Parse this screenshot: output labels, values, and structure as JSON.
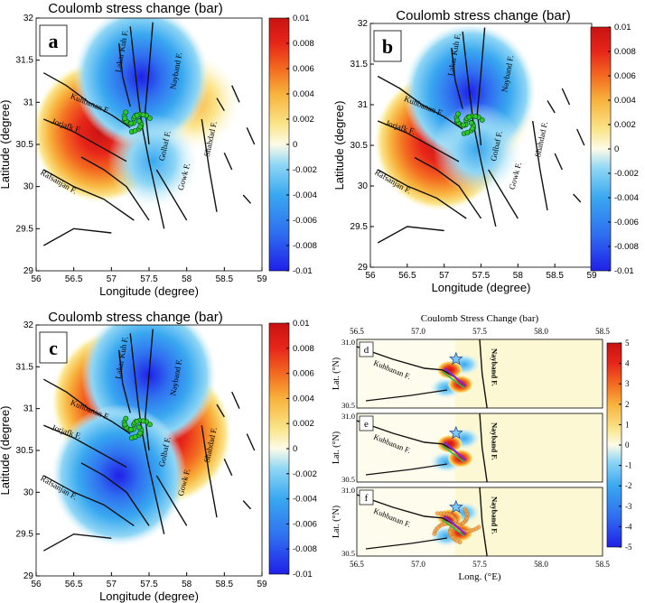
{
  "colors": {
    "scale": [
      "#2020e8",
      "#2f6ff0",
      "#39a8f0",
      "#8fd6f5",
      "#e4f7fb",
      "#fdf9d6",
      "#fbe48a",
      "#f8b23c",
      "#f36a20",
      "#e7261a",
      "#c81212"
    ],
    "fault": "#111111",
    "epicenter_fill": "#2ec82e",
    "epicenter_stroke": "#0a4a0a",
    "star": "#7fc8ff"
  },
  "chart_data": [
    {
      "id": "a",
      "type": "heatmap",
      "title": "Coulomb stress change (bar)",
      "panel_label": "a",
      "xlabel": "Longitude (degree)",
      "ylabel": "Latitude (degree)",
      "xlim": [
        56,
        59
      ],
      "ylim": [
        29,
        32
      ],
      "x_ticks": [
        "56",
        "56.5",
        "57",
        "57.5",
        "58",
        "58.5",
        "59"
      ],
      "y_ticks": [
        "29",
        "29.5",
        "30",
        "30.5",
        "31",
        "31.5",
        "32"
      ],
      "colorbar": {
        "range": [
          -0.01,
          0.01
        ],
        "ticks": [
          "0.01",
          "0.008",
          "0.006",
          "0.004",
          "0.002",
          "0",
          "-0.002",
          "-0.004",
          "-0.006",
          "-0.008",
          "-0.01"
        ]
      },
      "fault_labels": [
        "Lakar Kuh F.",
        "Kuhbanan F.",
        "Nayband F.",
        "Jorjafk F.",
        "Rafsanjan F.",
        "Golbaf F.",
        "Gowk F.",
        "Shahdad F."
      ],
      "lobes": [
        {
          "sign": "positive",
          "lon": 56.85,
          "lat": 30.65,
          "amplitude": 0.01
        },
        {
          "sign": "positive",
          "lon": 58.1,
          "lat": 31.0,
          "amplitude": 0.004
        },
        {
          "sign": "negative",
          "lon": 57.4,
          "lat": 31.3,
          "amplitude": -0.009
        },
        {
          "sign": "negative",
          "lon": 57.55,
          "lat": 30.3,
          "amplitude": -0.005
        }
      ]
    },
    {
      "id": "b",
      "type": "heatmap",
      "title": "Coulomb stress change (bar)",
      "panel_label": "b",
      "xlabel": "Longitude (degree)",
      "ylabel": "Latitude (degree)",
      "xlim": [
        56,
        59
      ],
      "ylim": [
        29,
        32
      ],
      "x_ticks": [
        "56",
        "56.5",
        "57",
        "57.5",
        "58",
        "58.5",
        "59"
      ],
      "y_ticks": [
        "29",
        "29.5",
        "30",
        "30.5",
        "31",
        "31.5",
        "32"
      ],
      "colorbar": {
        "range": [
          -0.01,
          0.01
        ],
        "ticks": [
          "0.01",
          "0.008",
          "0.006",
          "0.004",
          "0.002",
          "0",
          "-0.002",
          "-0.004",
          "-0.006",
          "-0.008",
          "-0.01"
        ]
      },
      "fault_labels": [
        "Lakar Kuh F.",
        "Kuhbanan F.",
        "Nayband F.",
        "Jorjafk F.",
        "Rafsanjan F.",
        "Golbaf F.",
        "Gowk F.",
        "Shahdad F."
      ],
      "lobes": [
        {
          "sign": "positive",
          "lon": 56.95,
          "lat": 30.55,
          "amplitude": 0.009
        },
        {
          "sign": "positive",
          "lon": 57.6,
          "lat": 30.85,
          "amplitude": 0.003
        },
        {
          "sign": "negative",
          "lon": 57.35,
          "lat": 31.15,
          "amplitude": -0.008
        },
        {
          "sign": "negative",
          "lon": 57.45,
          "lat": 30.45,
          "amplitude": -0.003
        }
      ]
    },
    {
      "id": "c",
      "type": "heatmap",
      "title": "Coulomb stress change (bar)",
      "panel_label": "c",
      "xlabel": "Longitude (degree)",
      "ylabel": "Latitude (degree)",
      "xlim": [
        56,
        59
      ],
      "ylim": [
        29,
        32
      ],
      "x_ticks": [
        "56",
        "56.5",
        "57",
        "57.5",
        "58",
        "58.5",
        "59"
      ],
      "y_ticks": [
        "29",
        "29.5",
        "30",
        "30.5",
        "31",
        "31.5",
        "32"
      ],
      "colorbar": {
        "range": [
          -0.01,
          0.01
        ],
        "ticks": [
          "0.01",
          "0.008",
          "0.006",
          "0.004",
          "0.002",
          "0",
          "-0.002",
          "-0.004",
          "-0.006",
          "-0.008",
          "-0.01"
        ]
      },
      "fault_labels": [
        "Lakar Kuh F.",
        "Kuhbanan F.",
        "Nayband F.",
        "Jorjafk F.",
        "Rafsanjan F.",
        "Golbaf F.",
        "Gowk F.",
        "Shahdad F."
      ],
      "lobes": [
        {
          "sign": "positive",
          "lon": 57.1,
          "lat": 31.1,
          "amplitude": 0.009
        },
        {
          "sign": "positive",
          "lon": 57.7,
          "lat": 30.7,
          "amplitude": 0.009
        },
        {
          "sign": "negative",
          "lon": 57.5,
          "lat": 31.4,
          "amplitude": -0.009
        },
        {
          "sign": "negative",
          "lon": 57.1,
          "lat": 30.2,
          "amplitude": -0.009
        }
      ]
    },
    {
      "id": "def",
      "type": "heatmap",
      "title": "Coulomb Stress Change (bar)",
      "xlabel": "Long. (°E)",
      "ylabel": "Lat. (°N)",
      "xlim": [
        56.5,
        58.5
      ],
      "ylim": [
        30.5,
        31.0
      ],
      "x_ticks": [
        "56.5",
        "57.0",
        "57.5",
        "58.0",
        "58.5"
      ],
      "y_ticks": [
        "30.5",
        "31.0"
      ],
      "colorbar": {
        "range": [
          -5,
          5
        ],
        "ticks": [
          "5",
          "4",
          "3",
          "2",
          "1",
          "0",
          "-1",
          "-2",
          "-3",
          "-4",
          "-5"
        ]
      },
      "subpanels": [
        {
          "label": "d",
          "fault_labels": [
            "Kuhbanan F.",
            "Nayband F."
          ]
        },
        {
          "label": "e",
          "fault_labels": [
            "Kuhbanan F.",
            "Nayband F."
          ]
        },
        {
          "label": "f",
          "fault_labels": [
            "Kuhbanan F.",
            "Nayband F."
          ]
        }
      ]
    }
  ]
}
